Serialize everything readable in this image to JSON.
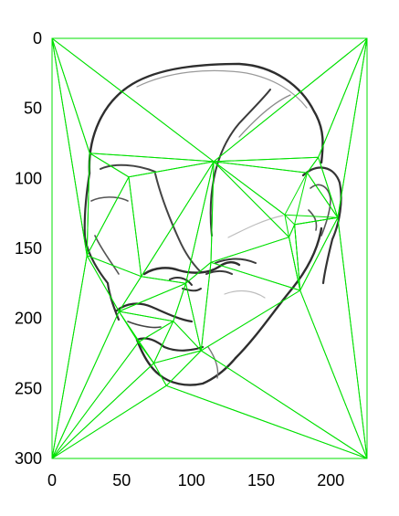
{
  "chart_data": {
    "type": "diagram",
    "title": "",
    "description_hidden": false,
    "x_ticks": [
      "0",
      "50",
      "100",
      "150",
      "200"
    ],
    "x_tick_values": [
      0,
      50,
      100,
      150,
      200
    ],
    "y_ticks": [
      "0",
      "50",
      "100",
      "150",
      "200",
      "250",
      "300"
    ],
    "y_tick_values": [
      0,
      50,
      100,
      150,
      200,
      250,
      300
    ],
    "xlim": [
      0,
      226
    ],
    "ylim": [
      0,
      300
    ],
    "line_color": "#00e000",
    "sketch_color": "#333333",
    "landmarks": [
      [
        0,
        0
      ],
      [
        226,
        0
      ],
      [
        0,
        300
      ],
      [
        226,
        300
      ],
      [
        27,
        82
      ],
      [
        55,
        99
      ],
      [
        116,
        88
      ],
      [
        191,
        85
      ],
      [
        205,
        128
      ],
      [
        25,
        155
      ],
      [
        64,
        170
      ],
      [
        96,
        175
      ],
      [
        114,
        160
      ],
      [
        170,
        142
      ],
      [
        178,
        180
      ],
      [
        48,
        195
      ],
      [
        87,
        202
      ],
      [
        107,
        223
      ],
      [
        62,
        217
      ],
      [
        73,
        232
      ],
      [
        82,
        248
      ],
      [
        174,
        133
      ],
      [
        183,
        96
      ],
      [
        167,
        126
      ]
    ],
    "triangles": [
      [
        0,
        1,
        6
      ],
      [
        0,
        6,
        4
      ],
      [
        1,
        6,
        7
      ],
      [
        1,
        7,
        8
      ],
      [
        0,
        4,
        9
      ],
      [
        0,
        9,
        2
      ],
      [
        1,
        8,
        3
      ],
      [
        4,
        5,
        6
      ],
      [
        6,
        7,
        22
      ],
      [
        6,
        22,
        23
      ],
      [
        6,
        23,
        13
      ],
      [
        7,
        22,
        8
      ],
      [
        22,
        8,
        21
      ],
      [
        23,
        21,
        8
      ],
      [
        4,
        9,
        5
      ],
      [
        5,
        9,
        10
      ],
      [
        5,
        10,
        6
      ],
      [
        10,
        11,
        6
      ],
      [
        11,
        12,
        6
      ],
      [
        12,
        13,
        6
      ],
      [
        13,
        21,
        14
      ],
      [
        12,
        13,
        14
      ],
      [
        8,
        14,
        21
      ],
      [
        8,
        14,
        3
      ],
      [
        9,
        15,
        10
      ],
      [
        10,
        15,
        11
      ],
      [
        15,
        16,
        11
      ],
      [
        11,
        16,
        17
      ],
      [
        11,
        12,
        17
      ],
      [
        12,
        14,
        17
      ],
      [
        14,
        17,
        3
      ],
      [
        2,
        9,
        15
      ],
      [
        2,
        15,
        18
      ],
      [
        15,
        16,
        18
      ],
      [
        16,
        17,
        19
      ],
      [
        16,
        18,
        19
      ],
      [
        17,
        19,
        20
      ],
      [
        17,
        20,
        3
      ],
      [
        2,
        18,
        19
      ],
      [
        2,
        19,
        20
      ],
      [
        2,
        20,
        3
      ],
      [
        18,
        19,
        15
      ],
      [
        13,
        14,
        21
      ]
    ]
  }
}
